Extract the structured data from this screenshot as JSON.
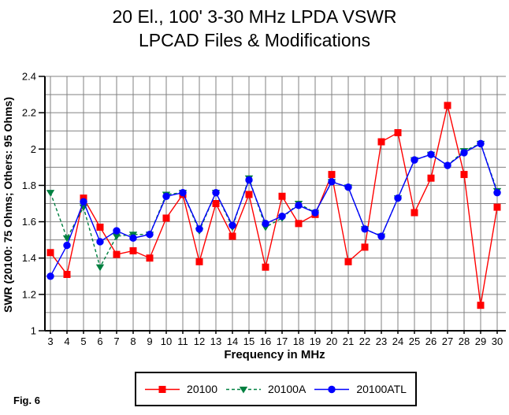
{
  "figure_label": "Fig. 6",
  "title_line1": "20 El., 100' 3-30 MHz LPDA VSWR",
  "title_line2": "LPCAD Files & Modifications",
  "colors": {
    "series_20100": "#ff0000",
    "series_20100A": "#008040",
    "series_20100ATL": "#0000ff",
    "grid": "#808080",
    "axis": "#000000",
    "background": "#ffffff"
  },
  "chart_data": {
    "type": "line",
    "title": "20 El., 100' 3-30 MHz LPDA VSWR — LPCAD Files & Modifications",
    "xlabel": "Frequency in MHz",
    "ylabel": "SWR (20100: 75 Ohms; Others: 95 Ohms)",
    "xlim": [
      3,
      30
    ],
    "ylim": [
      1,
      2.4
    ],
    "grid": true,
    "grid_step_y": 0.1,
    "grid_step_x": 1,
    "legend_position": "bottom",
    "x": [
      3,
      4,
      5,
      6,
      7,
      8,
      9,
      10,
      11,
      12,
      13,
      14,
      15,
      16,
      17,
      18,
      19,
      20,
      21,
      22,
      23,
      24,
      25,
      26,
      27,
      28,
      29,
      30
    ],
    "xtick_labels": [
      "3",
      "4",
      "5",
      "6",
      "7",
      "8",
      "9",
      "10",
      "11",
      "12",
      "13",
      "14",
      "15",
      "16",
      "17",
      "18",
      "19",
      "20",
      "21",
      "22",
      "23",
      "24",
      "25",
      "26",
      "27",
      "28",
      "29",
      "30"
    ],
    "yticks": [
      1,
      1.2,
      1.4,
      1.6,
      1.8,
      2,
      2.2,
      2.4
    ],
    "ytick_labels": [
      "1",
      "1.2",
      "1.4",
      "1.6",
      "1.8",
      "2",
      "2.2",
      "2.4"
    ],
    "series": [
      {
        "name": "20100",
        "color": "#ff0000",
        "marker": "square",
        "line": "solid",
        "values": [
          1.43,
          1.31,
          1.73,
          1.57,
          1.42,
          1.44,
          1.4,
          1.62,
          1.75,
          1.38,
          1.7,
          1.52,
          1.75,
          1.35,
          1.74,
          1.59,
          1.64,
          1.86,
          1.38,
          1.46,
          2.04,
          2.09,
          1.65,
          1.84,
          2.24,
          1.86,
          1.14,
          1.68
        ]
      },
      {
        "name": "20100A",
        "color": "#008040",
        "marker": "triangle-down",
        "line": "dashed",
        "values": [
          1.76,
          1.51,
          1.68,
          1.35,
          1.52,
          1.53,
          1.53,
          1.75,
          1.76,
          1.55,
          1.76,
          1.57,
          1.84,
          1.57,
          1.62,
          1.7,
          1.65,
          1.82,
          1.79,
          1.56,
          1.52,
          1.73,
          1.94,
          1.97,
          1.91,
          1.99,
          2.03,
          1.77
        ]
      },
      {
        "name": "20100ATL",
        "color": "#0000ff",
        "marker": "circle",
        "line": "solid",
        "values": [
          1.3,
          1.47,
          1.71,
          1.49,
          1.55,
          1.51,
          1.53,
          1.74,
          1.76,
          1.56,
          1.76,
          1.58,
          1.83,
          1.59,
          1.63,
          1.69,
          1.65,
          1.82,
          1.79,
          1.56,
          1.52,
          1.73,
          1.94,
          1.97,
          1.91,
          1.98,
          2.03,
          1.76
        ]
      }
    ]
  }
}
